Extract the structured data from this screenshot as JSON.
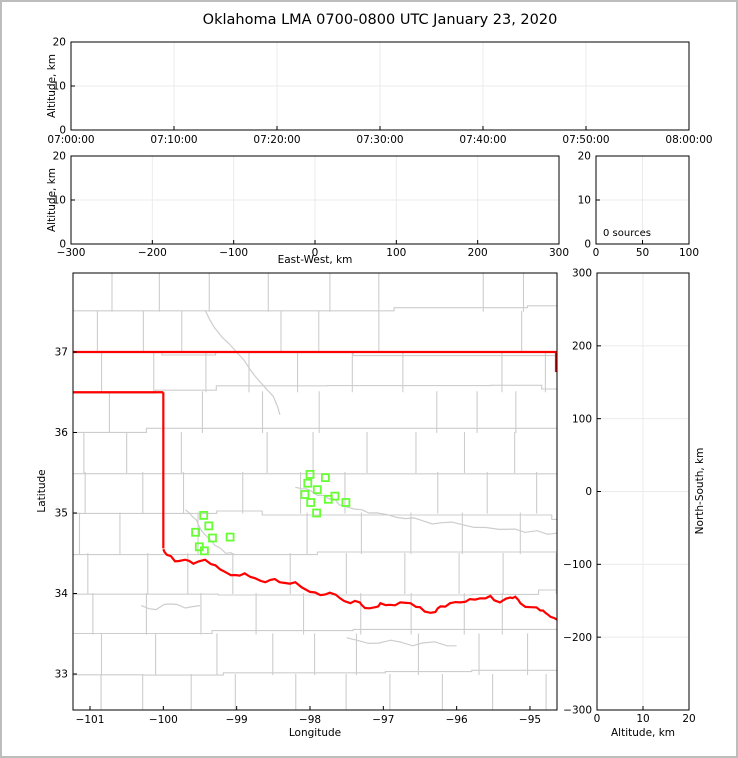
{
  "title": "Oklahoma LMA 0700-0800 UTC January 23, 2020",
  "colors": {
    "station": "#66ff33",
    "state_border": "#ff0000",
    "county": "#cdcdcd",
    "grid": "#ebebeb",
    "spine": "#000000"
  },
  "chart_data": [
    {
      "id": "altitude_vs_time",
      "type": "scatter",
      "ylabel": "Altitude, km",
      "x_tick_labels": [
        "07:00:00",
        "07:10:00",
        "07:20:00",
        "07:30:00",
        "07:40:00",
        "07:50:00",
        "08:00:00"
      ],
      "y_tick_values": [
        0,
        10,
        20
      ],
      "y_tick_labels": [
        "0",
        "10",
        "20"
      ],
      "ylim": [
        0,
        20
      ],
      "points": []
    },
    {
      "id": "altitude_vs_eastwest",
      "type": "scatter",
      "xlabel": "East-West, km",
      "ylabel": "Altitude, km",
      "x_tick_values": [
        -300,
        -200,
        -100,
        0,
        100,
        200,
        300
      ],
      "x_tick_labels": [
        "−300",
        "−200",
        "−100",
        "0",
        "100",
        "200",
        "300"
      ],
      "y_tick_values": [
        0,
        10,
        20
      ],
      "y_tick_labels": [
        "0",
        "10",
        "20"
      ],
      "xlim": [
        -300,
        300
      ],
      "ylim": [
        0,
        20
      ],
      "points": []
    },
    {
      "id": "source_count_vs_altitude",
      "type": "line",
      "annotation": "0 sources",
      "x_tick_values": [
        0,
        50,
        100
      ],
      "x_tick_labels": [
        "0",
        "50",
        "100"
      ],
      "y_tick_values": [
        0,
        10,
        20
      ],
      "y_tick_labels": [
        "0",
        "10",
        "20"
      ],
      "xlim": [
        0,
        100
      ],
      "ylim": [
        0,
        20
      ],
      "points": []
    },
    {
      "id": "plan_view_map",
      "type": "scatter",
      "xlabel": "Longitude",
      "ylabel": "Latitude",
      "x_tick_values": [
        -101,
        -100,
        -99,
        -98,
        -97,
        -96,
        -95
      ],
      "x_tick_labels": [
        "−101",
        "−100",
        "−99",
        "−98",
        "−97",
        "−96",
        "−95"
      ],
      "y_tick_values": [
        33,
        34,
        35,
        36,
        37
      ],
      "y_tick_labels": [
        "33",
        "34",
        "35",
        "36",
        "37"
      ],
      "xlim": [
        -101.23,
        -94.62
      ],
      "ylim": [
        32.55,
        37.98
      ],
      "stations_lon_lat": [
        [
          -99.45,
          34.97
        ],
        [
          -99.38,
          34.84
        ],
        [
          -99.56,
          34.76
        ],
        [
          -99.33,
          34.69
        ],
        [
          -99.09,
          34.7
        ],
        [
          -99.51,
          34.58
        ],
        [
          -99.44,
          34.53
        ],
        [
          -98.0,
          35.48
        ],
        [
          -97.79,
          35.44
        ],
        [
          -98.03,
          35.37
        ],
        [
          -97.9,
          35.29
        ],
        [
          -98.07,
          35.23
        ],
        [
          -97.66,
          35.21
        ],
        [
          -97.75,
          35.17
        ],
        [
          -97.99,
          35.13
        ],
        [
          -97.51,
          35.13
        ],
        [
          -97.91,
          35.0
        ]
      ],
      "oklahoma_border": {
        "north_border_lat": 37,
        "east_border": {
          "lon": -94.62,
          "lat_range": [
            36.75,
            37
          ]
        },
        "panhandle_south_lat": 36.5,
        "west_border_lon": -100,
        "west_border_lat_range": [
          34.56,
          36.5
        ],
        "red_river_lon_lat": [
          [
            -100.0,
            34.55
          ],
          [
            -99.95,
            34.48
          ],
          [
            -99.84,
            34.4
          ],
          [
            -99.7,
            34.42
          ],
          [
            -99.59,
            34.37
          ],
          [
            -99.43,
            34.42
          ],
          [
            -99.29,
            34.35
          ],
          [
            -99.16,
            34.27
          ],
          [
            -99.02,
            34.23
          ],
          [
            -98.89,
            34.25
          ],
          [
            -98.75,
            34.19
          ],
          [
            -98.61,
            34.14
          ],
          [
            -98.48,
            34.18
          ],
          [
            -98.34,
            34.13
          ],
          [
            -98.2,
            34.14
          ],
          [
            -98.0,
            34.02
          ],
          [
            -97.86,
            33.98
          ],
          [
            -97.73,
            34.01
          ],
          [
            -97.59,
            33.94
          ],
          [
            -97.45,
            33.88
          ],
          [
            -97.32,
            33.89
          ],
          [
            -97.25,
            33.82
          ],
          [
            -97.11,
            33.83
          ],
          [
            -97.04,
            33.88
          ],
          [
            -96.91,
            33.86
          ],
          [
            -96.77,
            33.89
          ],
          [
            -96.63,
            33.88
          ],
          [
            -96.5,
            33.83
          ],
          [
            -96.36,
            33.76
          ],
          [
            -96.29,
            33.77
          ],
          [
            -96.22,
            33.84
          ],
          [
            -96.09,
            33.88
          ],
          [
            -95.95,
            33.89
          ],
          [
            -95.82,
            33.93
          ],
          [
            -95.68,
            33.94
          ],
          [
            -95.54,
            33.97
          ],
          [
            -95.41,
            33.89
          ],
          [
            -95.27,
            33.95
          ],
          [
            -95.2,
            33.96
          ],
          [
            -95.13,
            33.88
          ],
          [
            -94.99,
            33.83
          ],
          [
            -94.86,
            33.79
          ],
          [
            -94.79,
            33.76
          ],
          [
            -94.72,
            33.71
          ],
          [
            -94.62,
            33.67
          ]
        ]
      },
      "rivers_lon_lat": [
        [
          [
            -99.43,
            37.52
          ],
          [
            -99.3,
            37.3
          ],
          [
            -99.1,
            37.1
          ],
          [
            -98.9,
            36.9
          ],
          [
            -98.75,
            36.7
          ],
          [
            -98.5,
            36.45
          ],
          [
            -98.41,
            36.22
          ]
        ],
        [
          [
            -98.2,
            35.32
          ],
          [
            -98.05,
            35.3
          ],
          [
            -97.9,
            35.22
          ],
          [
            -97.75,
            35.18
          ],
          [
            -97.6,
            35.1
          ],
          [
            -97.4,
            35.05
          ],
          [
            -97.2,
            35.0
          ],
          [
            -96.95,
            34.98
          ],
          [
            -96.7,
            34.93
          ],
          [
            -96.45,
            34.9
          ],
          [
            -96.2,
            34.88
          ],
          [
            -95.9,
            34.85
          ],
          [
            -95.6,
            34.82
          ],
          [
            -95.2,
            34.8
          ],
          [
            -94.9,
            34.78
          ],
          [
            -94.62,
            34.75
          ]
        ],
        [
          [
            -99.7,
            35.04
          ],
          [
            -99.6,
            34.95
          ],
          [
            -99.52,
            34.85
          ],
          [
            -99.42,
            34.72
          ],
          [
            -99.3,
            34.6
          ],
          [
            -99.15,
            34.5
          ],
          [
            -99.02,
            34.48
          ]
        ],
        [
          [
            -97.5,
            33.45
          ],
          [
            -97.2,
            33.38
          ],
          [
            -96.9,
            33.42
          ],
          [
            -96.6,
            33.35
          ],
          [
            -96.3,
            33.4
          ],
          [
            -96.0,
            33.35
          ]
        ],
        [
          [
            -100.3,
            33.85
          ],
          [
            -100.1,
            33.8
          ],
          [
            -99.9,
            33.87
          ],
          [
            -99.7,
            33.82
          ],
          [
            -99.5,
            33.85
          ]
        ]
      ]
    },
    {
      "id": "northsouth_vs_altitude",
      "type": "scatter",
      "xlabel": "Altitude, km",
      "ylabel": "North-South, km",
      "x_tick_values": [
        0,
        10,
        20
      ],
      "x_tick_labels": [
        "0",
        "10",
        "20"
      ],
      "y_tick_values": [
        300,
        200,
        100,
        0,
        -100,
        -200,
        -300
      ],
      "y_tick_labels": [
        "300",
        "200",
        "100",
        "0",
        "−100",
        "−200",
        "−300"
      ],
      "xlim": [
        0,
        20
      ],
      "ylim": [
        -300,
        300
      ],
      "points": []
    }
  ]
}
